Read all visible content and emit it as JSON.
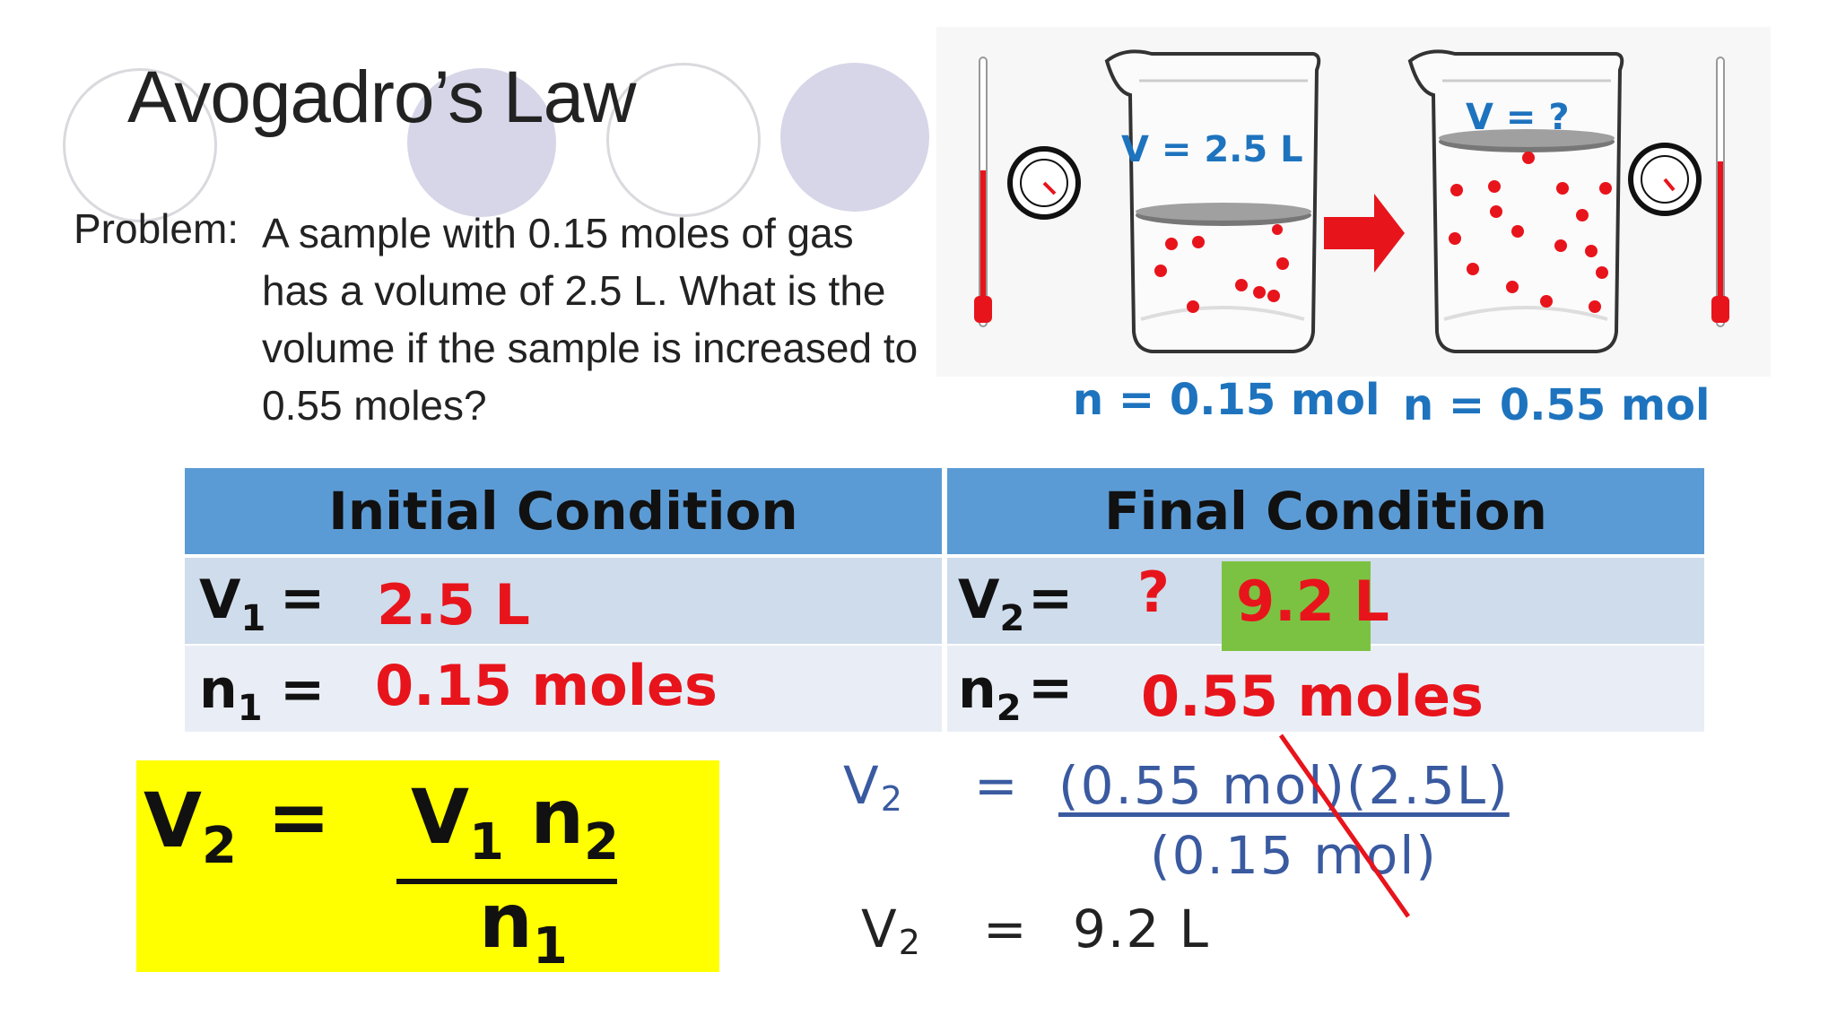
{
  "title": "Avogadro’s Law",
  "problem": {
    "label": "Problem:",
    "lines": [
      "A sample with 0.15 moles of gas",
      "has a volume of 2.5 L.  What is the",
      "volume if the sample is increased to",
      "0.55 moles?"
    ]
  },
  "illustration": {
    "left_beaker_volume": "V = 2.5 L",
    "right_beaker_volume": "V = ?",
    "left_moles": "n = 0.15 mol",
    "right_moles": "n = 0.55 mol"
  },
  "table": {
    "headers": [
      "Initial Condition",
      "Final Condition"
    ],
    "row1": {
      "left_label": "V",
      "left_sub": "1",
      "left_eq": "=",
      "left_value": "2.5 L",
      "right_label": "V",
      "right_sub": "2",
      "right_eq": "=",
      "right_unknown": "?",
      "right_answer": "9.2 L"
    },
    "row2": {
      "left_label": "n",
      "left_sub": "1",
      "left_eq": "=",
      "left_value": "0.15 moles",
      "right_label": "n",
      "right_sub": "2",
      "right_eq": "=",
      "right_value": "0.55 moles"
    }
  },
  "formula": {
    "lhs": "V",
    "lhs_sub": "2",
    "eq": "=",
    "num_a": "V",
    "num_a_sub": "1",
    "num_b": "n",
    "num_b_sub": "2",
    "den": "n",
    "den_sub": "1"
  },
  "calculation": {
    "line1_lhs": "V",
    "line1_lhs_sub": "2",
    "line1_eq": "=",
    "line1_numerator": "(0.55 mol)(2.5L)",
    "line2_denominator": "(0.15 mol)",
    "line3_lhs": "V",
    "line3_lhs_sub": "2",
    "line3_eq": "=",
    "line3_result": "9.2 L"
  },
  "colors": {
    "header_blue": "#5b9bd5",
    "answer_red": "#e8141c",
    "answer_green": "#7cc242",
    "formula_yellow": "#ffff00"
  }
}
